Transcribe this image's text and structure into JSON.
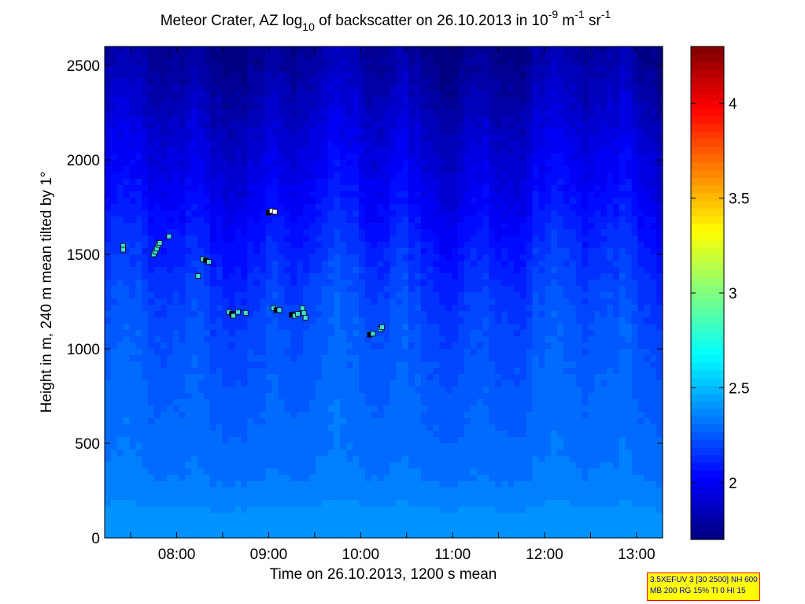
{
  "chart_data": {
    "type": "heatmap",
    "title": {
      "prefix": "Meteor Crater, AZ log",
      "sub": "10",
      "mid": " of backscatter on 26.10.2013 in 10",
      "sup1": "-9",
      "mid2": " m",
      "sup2": "-1",
      "mid3": " sr",
      "sup3": "-1"
    },
    "xlabel": "Time on 26.10.2013, 1200 s mean",
    "ylabel": "Height in m, 240 m mean tilted by 1°",
    "xlim": [
      "07:13",
      "13:17"
    ],
    "ylim": [
      0,
      2600
    ],
    "x_ticks": [
      "08:00",
      "09:00",
      "10:00",
      "11:00",
      "12:00",
      "13:00"
    ],
    "y_ticks": [
      "0",
      "500",
      "1000",
      "1500",
      "2000",
      "2500"
    ],
    "colorbar": {
      "range": [
        1.7,
        4.3
      ],
      "ticks": [
        "2",
        "2.5",
        "3",
        "3.5",
        "4"
      ],
      "colormap": "jet"
    },
    "background_profile": {
      "levels_m": [
        0,
        150,
        300,
        500,
        700,
        900,
        1100,
        1300,
        1500,
        1700,
        1900,
        2100,
        2300,
        2600
      ],
      "log_backscatter": [
        2.42,
        2.38,
        2.33,
        2.3,
        2.28,
        2.25,
        2.22,
        2.18,
        2.12,
        2.05,
        1.98,
        1.92,
        1.85,
        1.75
      ]
    },
    "markers": [
      {
        "time": "07:25",
        "height": 1545,
        "color": "#40e0d0"
      },
      {
        "time": "07:25",
        "height": 1525,
        "color": "#40e0d0"
      },
      {
        "time": "07:45",
        "height": 1500,
        "color": "#40e0d0"
      },
      {
        "time": "07:46",
        "height": 1515,
        "color": "#40e0d0"
      },
      {
        "time": "07:47",
        "height": 1530,
        "color": "#40e0d0"
      },
      {
        "time": "07:48",
        "height": 1550,
        "color": "#40e0d0"
      },
      {
        "time": "07:49",
        "height": 1560,
        "color": "#40e0d0"
      },
      {
        "time": "07:55",
        "height": 1595,
        "color": "#40e0d0"
      },
      {
        "time": "08:14",
        "height": 1385,
        "color": "#40e0d0"
      },
      {
        "time": "08:17",
        "height": 1475,
        "color": "#40e0d0"
      },
      {
        "time": "08:19",
        "height": 1468,
        "color": "#000000"
      },
      {
        "time": "08:21",
        "height": 1460,
        "color": "#40e0d0"
      },
      {
        "time": "08:34",
        "height": 1195,
        "color": "#40e0d0"
      },
      {
        "time": "08:36",
        "height": 1185,
        "color": "#000000"
      },
      {
        "time": "08:37",
        "height": 1175,
        "color": "#40e0d0"
      },
      {
        "time": "08:40",
        "height": 1195,
        "color": "#40e0d0"
      },
      {
        "time": "08:45",
        "height": 1190,
        "color": "#40e0d0"
      },
      {
        "time": "09:00",
        "height": 1720,
        "color": "#000000"
      },
      {
        "time": "09:02",
        "height": 1730,
        "color": "#ffffff"
      },
      {
        "time": "09:04",
        "height": 1725,
        "color": "#ffffff"
      },
      {
        "time": "09:03",
        "height": 1215,
        "color": "#40e0d0"
      },
      {
        "time": "09:05",
        "height": 1205,
        "color": "#000000"
      },
      {
        "time": "09:07",
        "height": 1205,
        "color": "#40e0d0"
      },
      {
        "time": "09:15",
        "height": 1180,
        "color": "#000000"
      },
      {
        "time": "09:17",
        "height": 1175,
        "color": "#40e0d0"
      },
      {
        "time": "09:19",
        "height": 1185,
        "color": "#40e0d0"
      },
      {
        "time": "09:22",
        "height": 1215,
        "color": "#40e0d0"
      },
      {
        "time": "09:23",
        "height": 1190,
        "color": "#40e0d0"
      },
      {
        "time": "09:24",
        "height": 1165,
        "color": "#40e0d0"
      },
      {
        "time": "10:06",
        "height": 1075,
        "color": "#000000"
      },
      {
        "time": "10:08",
        "height": 1080,
        "color": "#40e0d0"
      },
      {
        "time": "10:13",
        "height": 1105,
        "color": "#40e0d0"
      },
      {
        "time": "10:14",
        "height": 1115,
        "color": "#40e0d0"
      }
    ]
  },
  "parameter_box": {
    "line1": "3.5XEFUV 3 [30 2500] NH 600",
    "line2": "MB 200 RG 15% TI 0 HI 15"
  }
}
